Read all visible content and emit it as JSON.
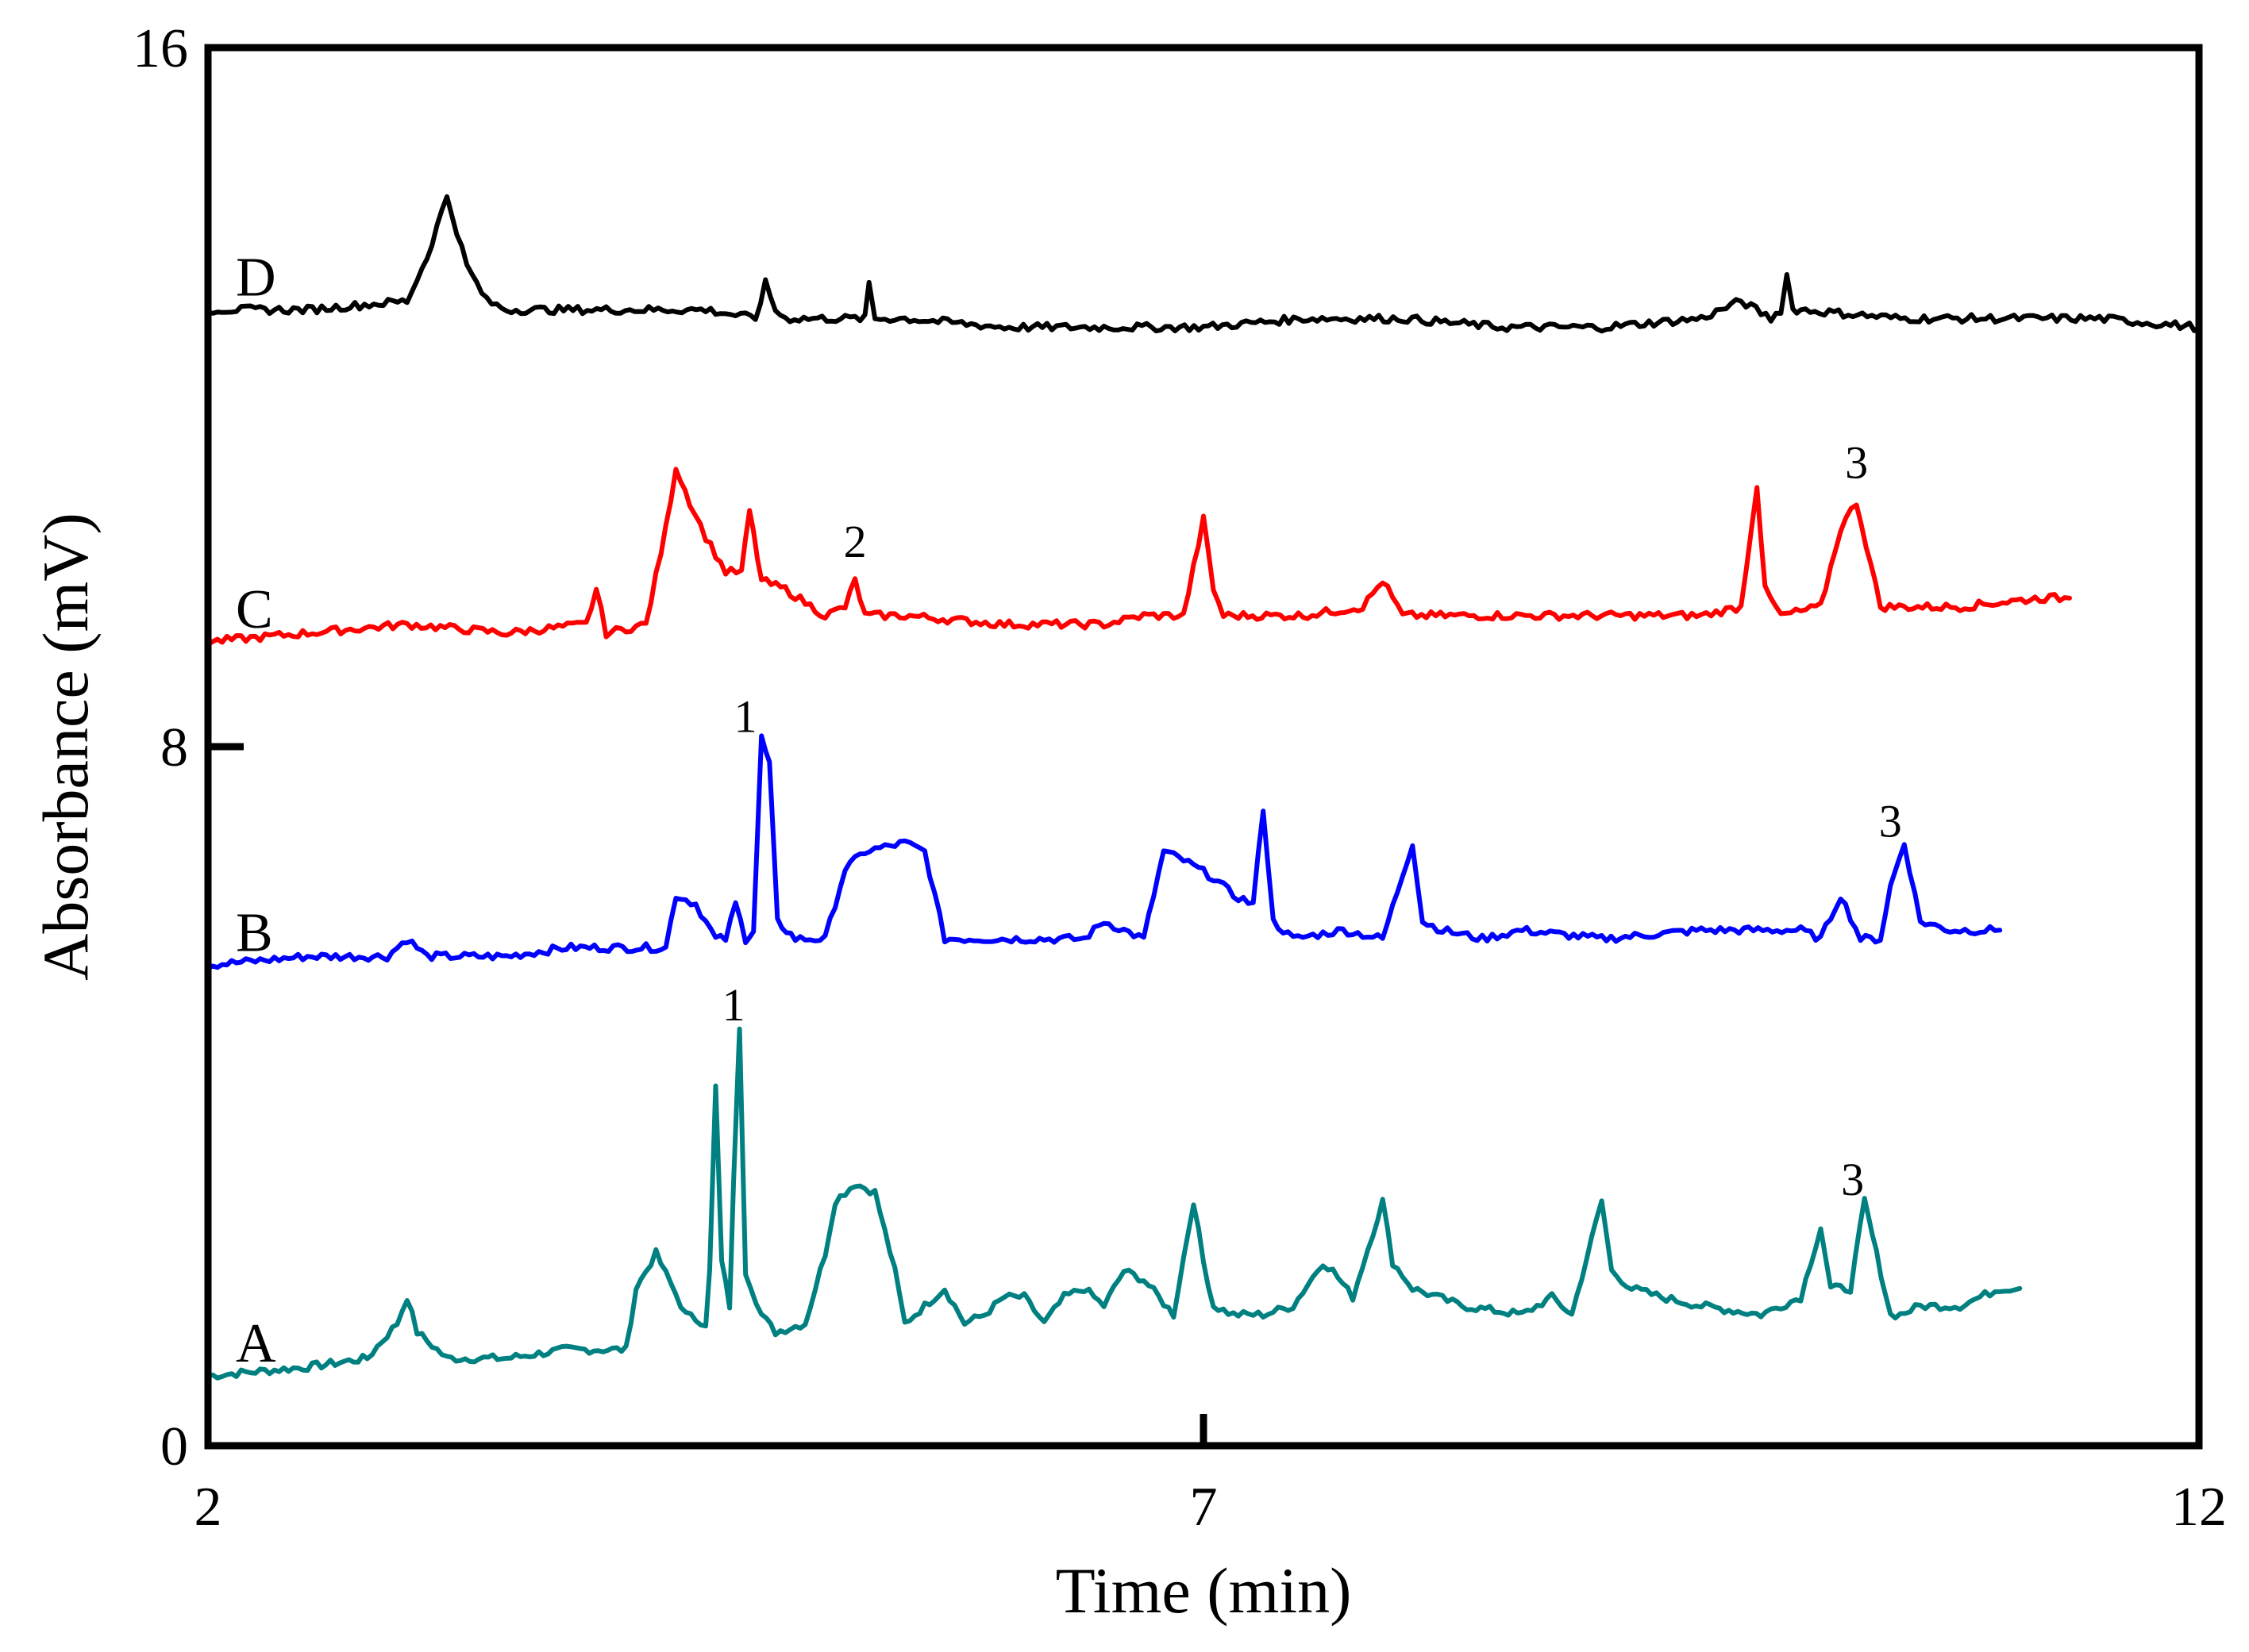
{
  "chart_data": {
    "type": "line",
    "title": "",
    "xlabel": "Time (min)",
    "ylabel": "Absorbance (mV)",
    "xlim": [
      2,
      12
    ],
    "ylim": [
      0,
      16
    ],
    "xticks": [
      2,
      7,
      12
    ],
    "yticks": [
      0,
      8,
      16
    ],
    "grid": false,
    "series": [
      {
        "name": "A",
        "color": "#008080",
        "x": [
          2.0,
          2.5,
          2.8,
          2.95,
          3.0,
          3.05,
          3.2,
          3.5,
          3.8,
          4.1,
          4.15,
          4.25,
          4.4,
          4.5,
          4.52,
          4.55,
          4.58,
          4.62,
          4.64,
          4.67,
          4.7,
          4.78,
          4.85,
          5.0,
          5.1,
          5.15,
          5.25,
          5.35,
          5.45,
          5.5,
          5.6,
          5.7,
          5.8,
          5.9,
          6.0,
          6.1,
          6.2,
          6.3,
          6.4,
          6.5,
          6.6,
          6.7,
          6.85,
          6.95,
          7.0,
          7.05,
          7.15,
          7.3,
          7.45,
          7.6,
          7.65,
          7.75,
          7.9,
          7.95,
          8.05,
          8.3,
          8.6,
          8.75,
          8.85,
          9.0,
          9.05,
          9.15,
          9.3,
          9.5,
          9.8,
          10.0,
          10.1,
          10.15,
          10.25,
          10.32,
          10.38,
          10.45,
          10.5,
          10.6,
          10.8,
          11.0,
          11.1
        ],
        "y": [
          0.8,
          0.9,
          1.0,
          1.4,
          1.7,
          1.3,
          1.0,
          1.0,
          1.1,
          1.1,
          1.8,
          2.2,
          1.5,
          1.4,
          2.0,
          4.1,
          2.1,
          1.6,
          3.0,
          4.8,
          2.0,
          1.5,
          1.3,
          1.4,
          2.2,
          2.8,
          3.0,
          2.9,
          2.0,
          1.4,
          1.6,
          1.8,
          1.4,
          1.5,
          1.7,
          1.7,
          1.4,
          1.7,
          1.8,
          1.6,
          2.0,
          1.9,
          1.5,
          2.8,
          2.1,
          1.6,
          1.5,
          1.5,
          1.6,
          2.1,
          2.0,
          1.7,
          2.8,
          2.1,
          1.8,
          1.6,
          1.5,
          1.7,
          1.5,
          2.8,
          2.0,
          1.8,
          1.7,
          1.6,
          1.5,
          1.7,
          2.5,
          1.8,
          1.8,
          2.8,
          2.2,
          1.5,
          1.5,
          1.6,
          1.6,
          1.8,
          1.8
        ]
      },
      {
        "name": "B",
        "color": "#0000ff",
        "x": [
          2.0,
          2.5,
          2.9,
          3.0,
          3.1,
          3.5,
          3.8,
          4.2,
          4.3,
          4.35,
          4.45,
          4.55,
          4.6,
          4.65,
          4.7,
          4.74,
          4.78,
          4.82,
          4.86,
          4.95,
          5.1,
          5.2,
          5.3,
          5.5,
          5.6,
          5.7,
          5.8,
          6.2,
          6.4,
          6.5,
          6.6,
          6.7,
          6.8,
          6.9,
          7.05,
          7.15,
          7.25,
          7.3,
          7.35,
          7.45,
          7.7,
          7.9,
          8.05,
          8.1,
          8.2,
          8.4,
          8.6,
          9.0,
          9.5,
          10.0,
          10.1,
          10.2,
          10.3,
          10.4,
          10.45,
          10.52,
          10.6,
          10.75,
          11.0
        ],
        "y": [
          5.5,
          5.6,
          5.6,
          5.8,
          5.6,
          5.6,
          5.7,
          5.7,
          5.7,
          6.3,
          6.2,
          5.8,
          5.8,
          6.2,
          5.8,
          5.9,
          8.1,
          7.8,
          6.0,
          5.8,
          5.8,
          6.6,
          6.8,
          6.9,
          6.8,
          5.8,
          5.8,
          5.8,
          5.8,
          6.0,
          5.9,
          5.8,
          6.8,
          6.7,
          6.5,
          6.3,
          6.2,
          7.3,
          6.0,
          5.8,
          5.9,
          5.8,
          6.9,
          6.0,
          5.9,
          5.8,
          5.9,
          5.8,
          5.9,
          5.9,
          5.8,
          6.3,
          5.8,
          5.8,
          6.4,
          6.9,
          6.0,
          5.9,
          5.9
        ]
      },
      {
        "name": "C",
        "color": "#ff0000",
        "x": [
          2.0,
          2.5,
          3.0,
          3.5,
          3.9,
          3.95,
          4.0,
          4.2,
          4.3,
          4.35,
          4.42,
          4.5,
          4.6,
          4.68,
          4.72,
          4.78,
          4.9,
          5.1,
          5.2,
          5.25,
          5.3,
          5.5,
          6.0,
          6.5,
          6.7,
          6.9,
          7.0,
          7.05,
          7.1,
          7.2,
          7.5,
          7.8,
          7.9,
          8.0,
          8.5,
          9.0,
          9.5,
          9.7,
          9.78,
          9.82,
          9.9,
          10.1,
          10.2,
          10.28,
          10.4,
          10.8,
          11.2,
          11.35
        ],
        "y": [
          9.2,
          9.3,
          9.4,
          9.3,
          9.4,
          9.8,
          9.3,
          9.4,
          10.5,
          11.2,
          10.8,
          10.4,
          10.0,
          10.0,
          10.7,
          9.9,
          9.8,
          9.5,
          9.6,
          9.9,
          9.5,
          9.5,
          9.4,
          9.4,
          9.5,
          9.5,
          10.6,
          9.8,
          9.5,
          9.5,
          9.5,
          9.6,
          9.9,
          9.5,
          9.5,
          9.5,
          9.5,
          9.6,
          11.0,
          9.8,
          9.5,
          9.6,
          10.5,
          10.8,
          9.6,
          9.6,
          9.7,
          9.7
        ],
        "peak_labels": [
          {
            "text": "2",
            "x": 5.25,
            "y": 9.9
          },
          {
            "text": "3",
            "x": 10.28,
            "y": 10.8
          }
        ]
      },
      {
        "name": "D",
        "color": "#000000",
        "x": [
          2.0,
          2.5,
          3.0,
          3.1,
          3.2,
          3.3,
          3.4,
          3.5,
          4.0,
          4.5,
          4.75,
          4.8,
          4.85,
          4.9,
          5.2,
          5.3,
          5.32,
          5.35,
          5.5,
          6.0,
          6.5,
          7.0,
          7.5,
          8.0,
          8.5,
          9.0,
          9.5,
          9.7,
          9.85,
          9.9,
          9.93,
          9.96,
          10.0,
          10.5,
          11.0,
          11.5,
          12.0
        ],
        "y": [
          13.0,
          13.0,
          13.1,
          13.6,
          14.3,
          13.5,
          13.1,
          13.0,
          13.0,
          13.0,
          12.9,
          13.3,
          13.0,
          12.9,
          12.9,
          12.9,
          13.3,
          12.9,
          12.9,
          12.8,
          12.8,
          12.8,
          12.9,
          12.9,
          12.8,
          12.8,
          12.9,
          13.1,
          12.9,
          13.0,
          13.4,
          13.0,
          13.0,
          12.9,
          12.9,
          12.9,
          12.8
        ]
      }
    ],
    "annotations": [
      {
        "text": "1",
        "x": 4.7,
        "y": 8.35
      },
      {
        "text": "1",
        "x": 4.64,
        "y": 5.05
      },
      {
        "text": "3",
        "x": 10.45,
        "y": 7.15
      },
      {
        "text": "3",
        "x": 10.26,
        "y": 3.05
      }
    ]
  }
}
